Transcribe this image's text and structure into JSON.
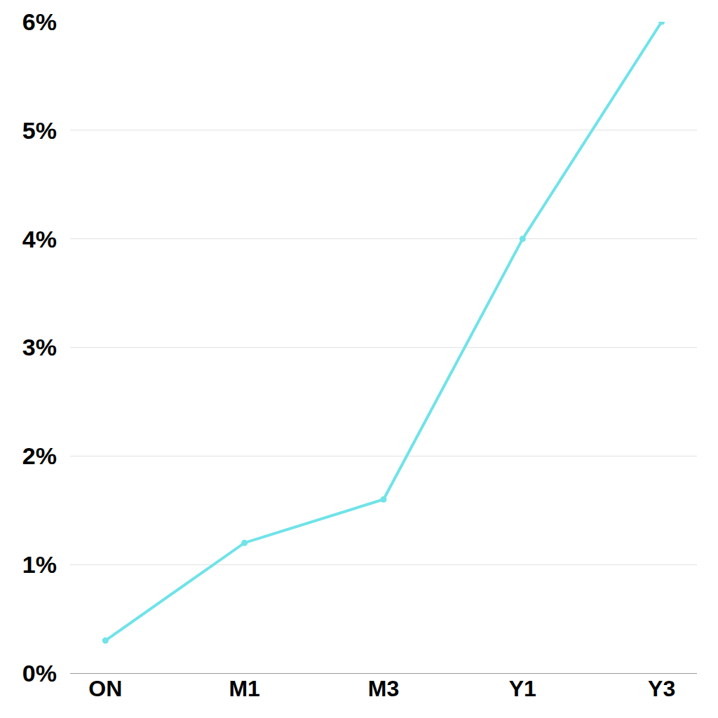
{
  "chart_data": {
    "type": "line",
    "categories": [
      "ON",
      "M1",
      "M3",
      "Y1",
      "Y3"
    ],
    "values": [
      0.3,
      1.2,
      1.6,
      4.0,
      6.0
    ],
    "color": "#6fe3e9",
    "marker": "circle",
    "line_style": "solid",
    "ylim": [
      0,
      6
    ],
    "yticks": [
      {
        "value": 0,
        "label": "0%"
      },
      {
        "value": 1,
        "label": "1%"
      },
      {
        "value": 2,
        "label": "2%"
      },
      {
        "value": 3,
        "label": "3%"
      },
      {
        "value": 4,
        "label": "4%"
      },
      {
        "value": 5,
        "label": "5%"
      },
      {
        "value": 6,
        "label": "6%"
      }
    ],
    "grid": true
  }
}
